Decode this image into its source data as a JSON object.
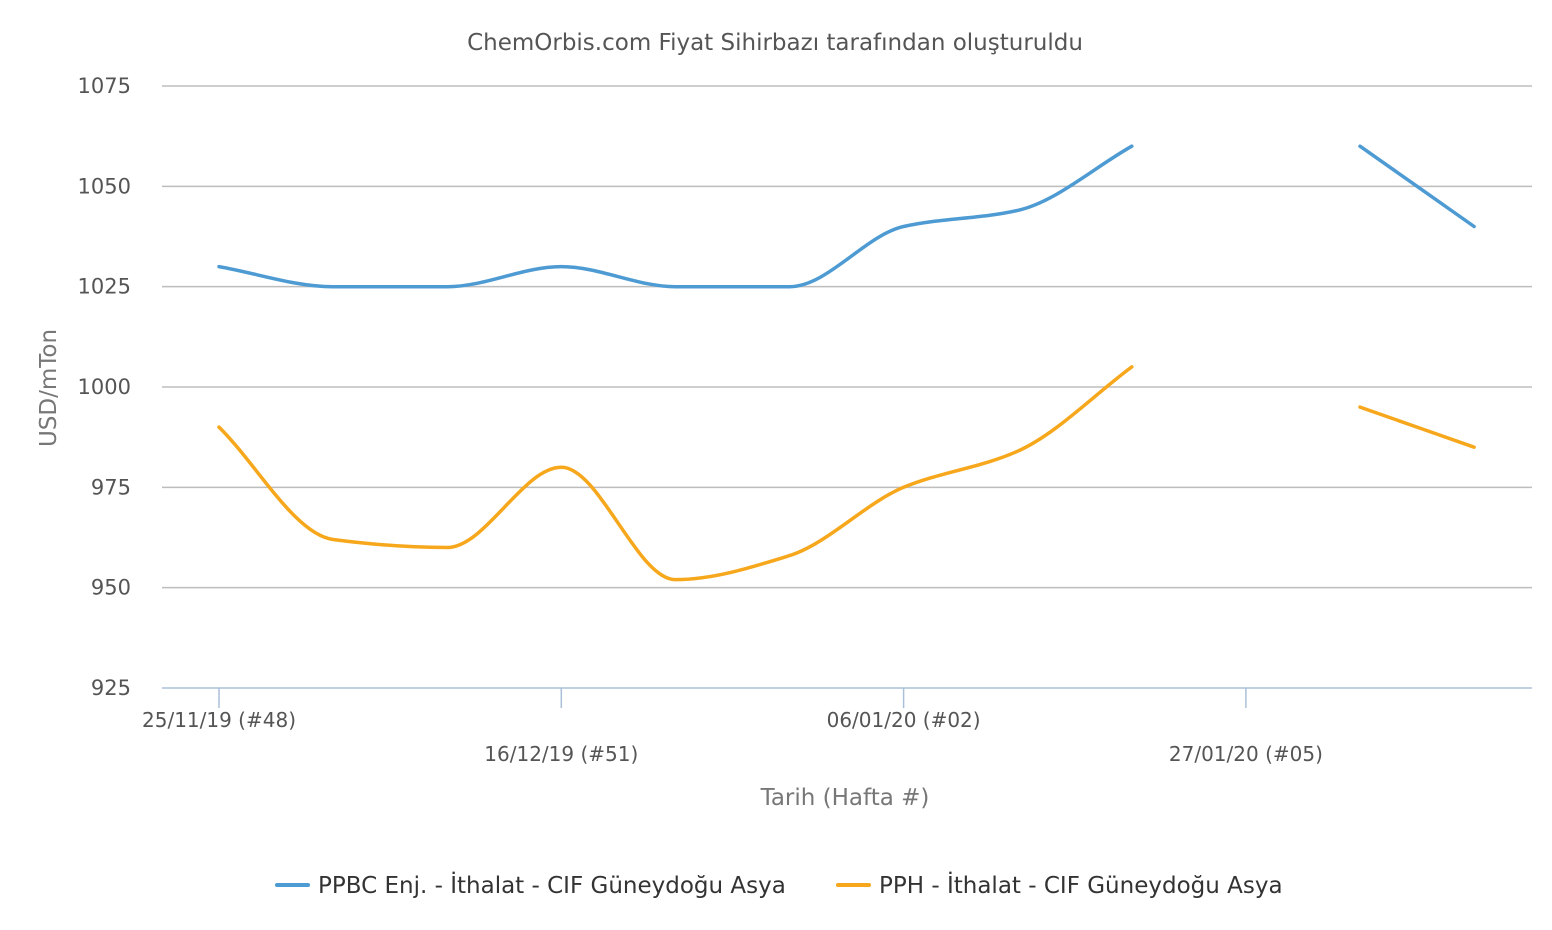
{
  "chart_data": {
    "type": "line",
    "title": "ChemOrbis.com Fiyat Sihirbazı tarafından oluşturuldu",
    "xlabel": "Tarih (Hafta #)",
    "ylabel": "USD/mTon",
    "ylim": [
      925,
      1075
    ],
    "yticks": [
      925,
      950,
      975,
      1000,
      1025,
      1050,
      1075
    ],
    "grid": true,
    "legend": "bottom-center",
    "x": [
      "25/11/19",
      "02/12/19",
      "09/12/19",
      "16/12/19",
      "23/12/19",
      "30/12/19",
      "06/01/20",
      "13/01/20",
      "20/01/20",
      "27/01/20",
      "03/02/20",
      "10/02/20"
    ],
    "xticks": [
      {
        "x": "25/11/19",
        "label": "25/11/19 (#48)"
      },
      {
        "x": "16/12/19",
        "label": "16/12/19 (#51)"
      },
      {
        "x": "06/01/20",
        "label": "06/01/20 (#02)"
      },
      {
        "x": "27/01/20",
        "label": "27/01/20 (#05)"
      }
    ],
    "series": [
      {
        "name": "PPBC Enj. - İthalat - CIF Güneydoğu Asya",
        "color": "#4e9bd3",
        "values": [
          1030,
          1025,
          1025,
          1030,
          1025,
          1025,
          1040,
          1044,
          1060,
          null,
          1060,
          1040
        ]
      },
      {
        "name": "PPH - İthalat - CIF Güneydoğu Asya",
        "color": "#f6a71b",
        "values": [
          990,
          962,
          960,
          980,
          952,
          958,
          975,
          984,
          1005,
          null,
          995,
          985
        ]
      }
    ]
  }
}
